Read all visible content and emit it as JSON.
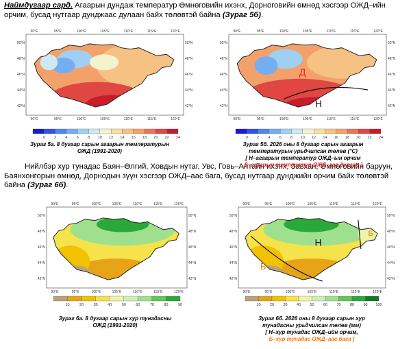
{
  "paragraph1": {
    "lead": "Наймдугаар сард.",
    "text": " Агаарын дундаж температур Өмнөговийн ихэнх, Дорноговийн өмнөд хэсгээр ОЖД–ийн орчим, бусад нутгаар дунджаас дулаан байх төлөвтэй байна ",
    "ref": "(Зураг 5б)",
    "end": "."
  },
  "paragraph2": {
    "text": "Нийлбэр хур тунадас Баян–Өлгий, Ховдын нутаг, Увс, Говь–Алтайн ихэнх, Завхан, Өмнөговийн баруун, Баянхонгорын өмнөд, Дорнодын зүүн хэсгээр ОЖД–аас бага, бусад нутгаар дунджийн орчим байх төлөвтэй байна ",
    "ref": "(Зураг 6б)",
    "end": "."
  },
  "lon_ticks": [
    "90°E",
    "95°E",
    "100°E",
    "105°E",
    "110°E",
    "115°E",
    "120°E"
  ],
  "lat_ticks": [
    "50°N",
    "48°N",
    "46°N",
    "44°N",
    "42°N"
  ],
  "fig5a": {
    "caption_line1": "Зураг 5а. 8 дугаар сарын агаарын температурын",
    "caption_line2": "ОЖД (1991-2020)",
    "colorbar_labels": [
      "0",
      "2",
      "4",
      "6",
      "8",
      "10",
      "12",
      "14",
      "16",
      "18",
      "20",
      "22",
      "24"
    ]
  },
  "fig5b": {
    "caption_line1": "Зураг 5б. 2026 оны 8 дугаар сарын агаарын",
    "caption_line2": "температурын урьдчилсан төлөв (°С)",
    "legend_n": "[ Н–агаарын температур ОЖД–ын орчим",
    "legend_d": "Д–агаарын температур ОЖД–аас дулаан ]",
    "region_d": "Д",
    "region_n": "Н",
    "colorbar_labels": [
      "0",
      "2",
      "4",
      "6",
      "8",
      "10",
      "12",
      "14",
      "16",
      "18",
      "20",
      "22",
      "24"
    ]
  },
  "fig6a": {
    "caption_line1": "Зураг 6а. 8 дугаар сарын хур тунадасны",
    "caption_line2": "ОЖД (1991-2020)",
    "colorbar_labels": [
      "10",
      "20",
      "30",
      "40",
      "50",
      "60",
      "70",
      "80",
      "90"
    ]
  },
  "fig6b": {
    "caption_line1": "Зураг 6б. 2026 оны 8 дугаар сарын хур",
    "caption_line2": "тунадасны урьдчилсан төлөв (мм)",
    "legend_n": "[ Н–хур тунадас ОЖД–ийн орчим,",
    "legend_b": "Б–хур тунадас ОЖД–аас бага ]",
    "region_n": "Н",
    "region_b1": "Б",
    "region_b2": "Б",
    "colorbar_labels": [
      "10",
      "20",
      "30",
      "40",
      "50",
      "60",
      "70",
      "80",
      "90",
      "100"
    ]
  },
  "colors": {
    "temp_scale": [
      "#1a1adb",
      "#2f52e8",
      "#4f86f0",
      "#74aef2",
      "#9fd0f4",
      "#cde9f2",
      "#f4f4cc",
      "#f7dfa0",
      "#f6c283",
      "#f3a16b",
      "#ec7558",
      "#e04642",
      "#c81c2c",
      "#9c0d22"
    ],
    "precip_scale": [
      "#b9a27c",
      "#e7a419",
      "#f2c200",
      "#f6e24a",
      "#eef4a6",
      "#cfeeb7",
      "#9fe08e",
      "#5fca55",
      "#2aa83a",
      "#107a22"
    ],
    "label_red": "#e0201b",
    "label_orange": "#f07a10"
  }
}
